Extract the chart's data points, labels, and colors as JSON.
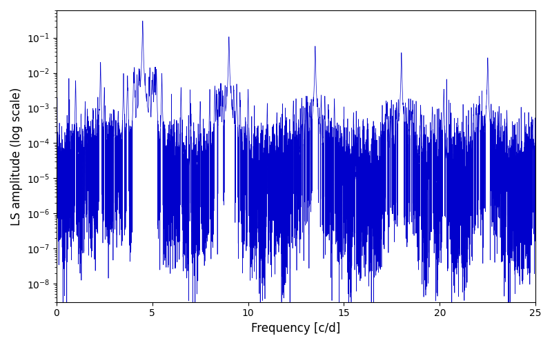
{
  "title": "",
  "xlabel": "Frequency [c/d]",
  "ylabel": "LS amplitude (log scale)",
  "xlim": [
    0,
    25
  ],
  "ylim": [
    3e-09,
    0.6
  ],
  "line_color": "#0000cc",
  "line_width": 0.5,
  "background_color": "#ffffff",
  "figsize": [
    8.0,
    5.0
  ],
  "dpi": 100,
  "freq_min": 0.0,
  "freq_max": 25.0,
  "n_points": 15000,
  "seed": 12345
}
